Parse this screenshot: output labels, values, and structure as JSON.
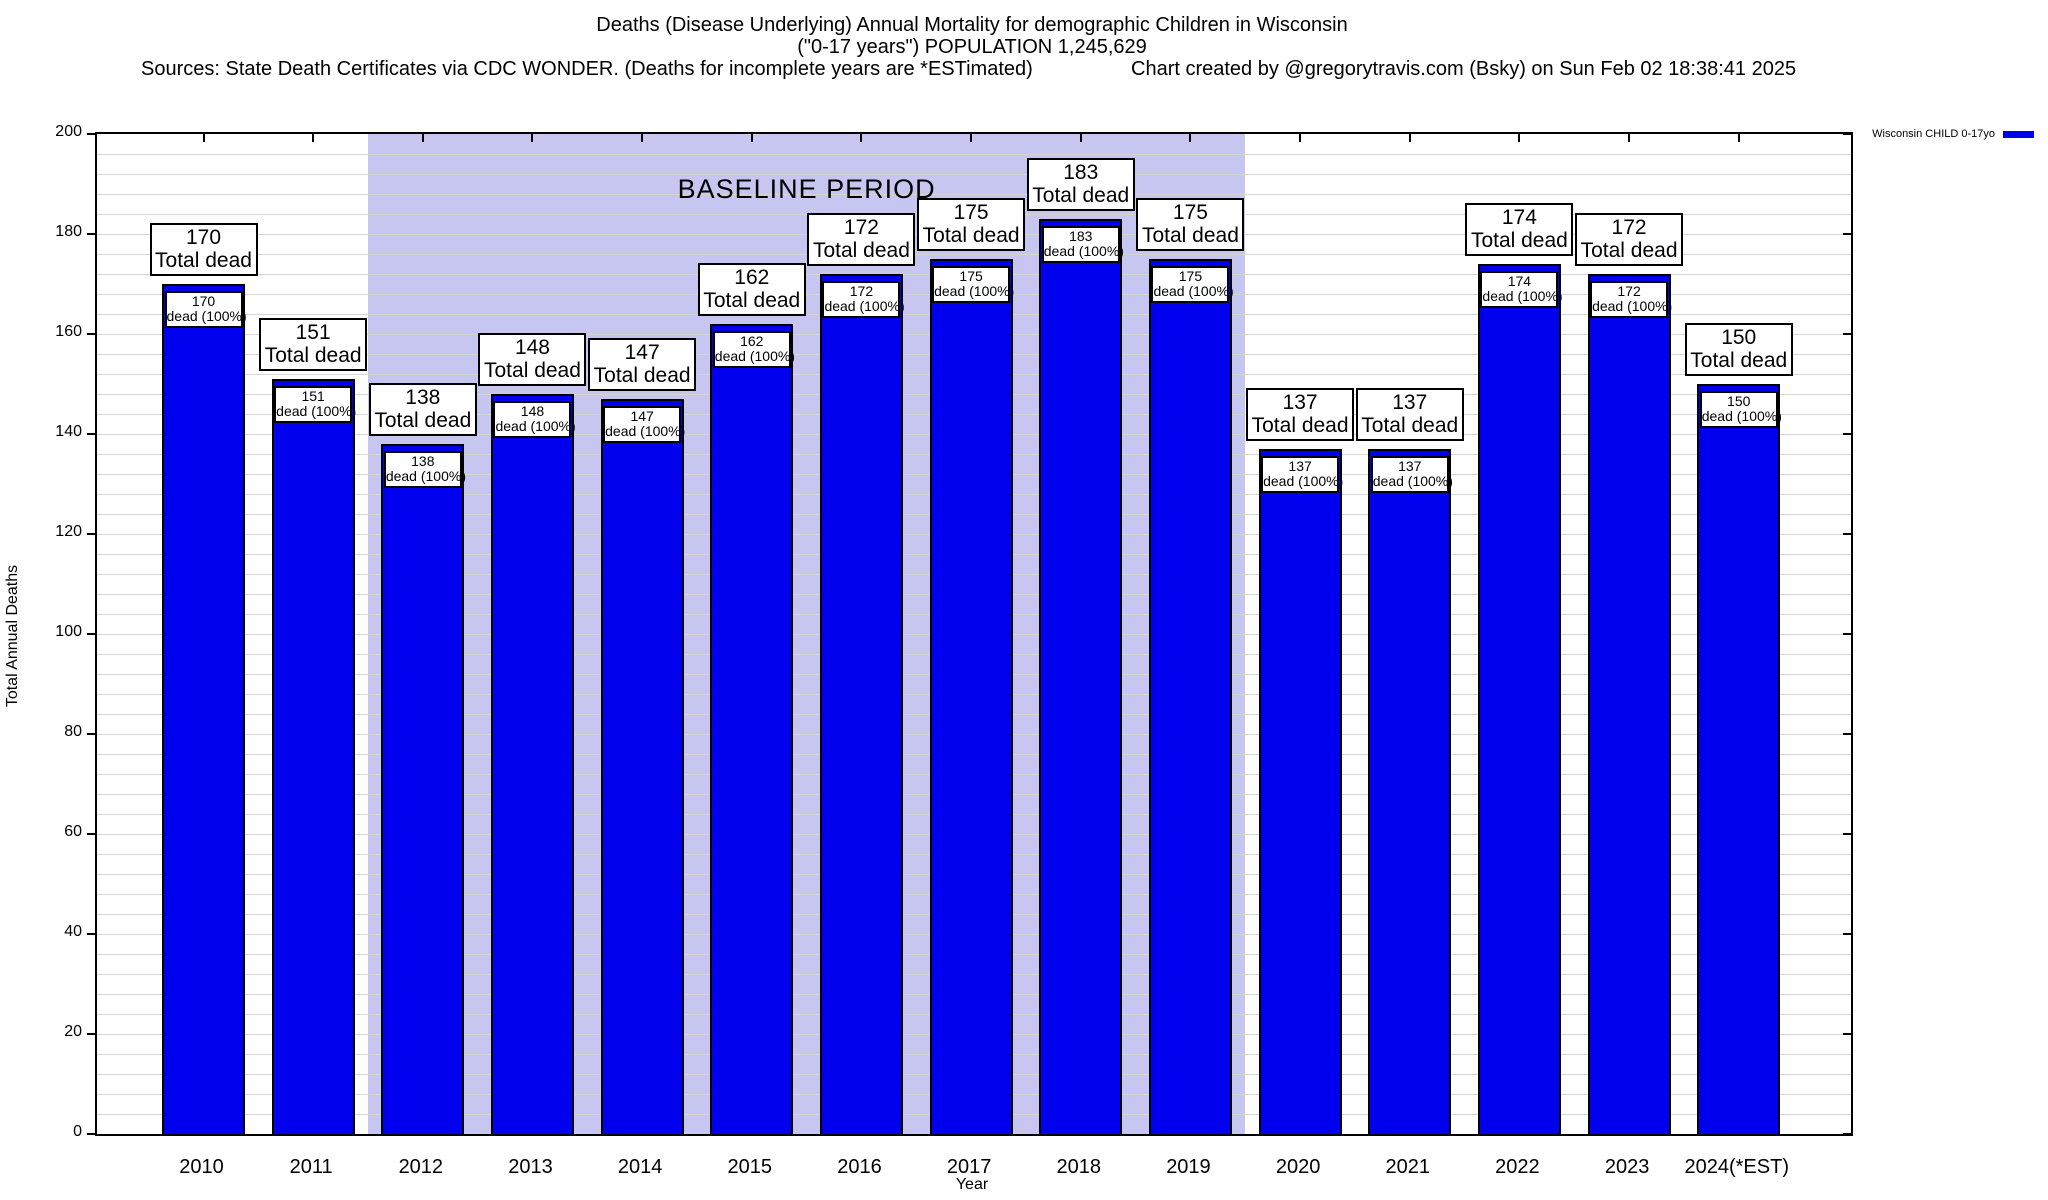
{
  "header": {
    "title_line1": "Deaths (Disease Underlying) Annual Mortality for demographic Children in Wisconsin",
    "title_line2": "(\"0-17 years\") POPULATION 1,245,629",
    "sources_line": "Sources: State Death Certificates via CDC WONDER. (Deaths for incomplete years are *ESTimated)",
    "credit_line": "Chart created by @gregorytravis.com (Bsky) on Sun Feb 02 18:38:41 2025"
  },
  "legend": {
    "label": "Wisconsin CHILD 0-17yo",
    "swatch_color": "#0000ee"
  },
  "chart_data": {
    "type": "bar",
    "title": "Deaths (Disease Underlying) Annual Mortality for demographic Children in Wisconsin",
    "subtitle": "(\"0-17 years\") POPULATION 1,245,629",
    "categories": [
      "2010",
      "2011",
      "2012",
      "2013",
      "2014",
      "2015",
      "2016",
      "2017",
      "2018",
      "2019",
      "2020",
      "2021",
      "2022",
      "2023",
      "2024(*EST)"
    ],
    "values": [
      170,
      151,
      138,
      148,
      147,
      162,
      172,
      175,
      183,
      175,
      137,
      137,
      174,
      172,
      150
    ],
    "series_name": "Wisconsin CHILD 0-17yo",
    "xlabel": "Year",
    "ylabel": "Total Annual Deaths",
    "ylim": [
      0,
      200
    ],
    "ytick_step": 20,
    "minor_grid_step": 4,
    "grid": "on",
    "legend_position": "top-right-outside",
    "bar_color": "#0000ee",
    "grid_color": "#d5d5d5",
    "annotation_outer_suffix": "Total dead",
    "annotation_inner_suffix": "dead (100%)",
    "baseline_band": {
      "label": "BASELINE PERIOD",
      "from_year": 2011.5,
      "to_year": 2019.5,
      "color": "#c6c6f0"
    }
  }
}
